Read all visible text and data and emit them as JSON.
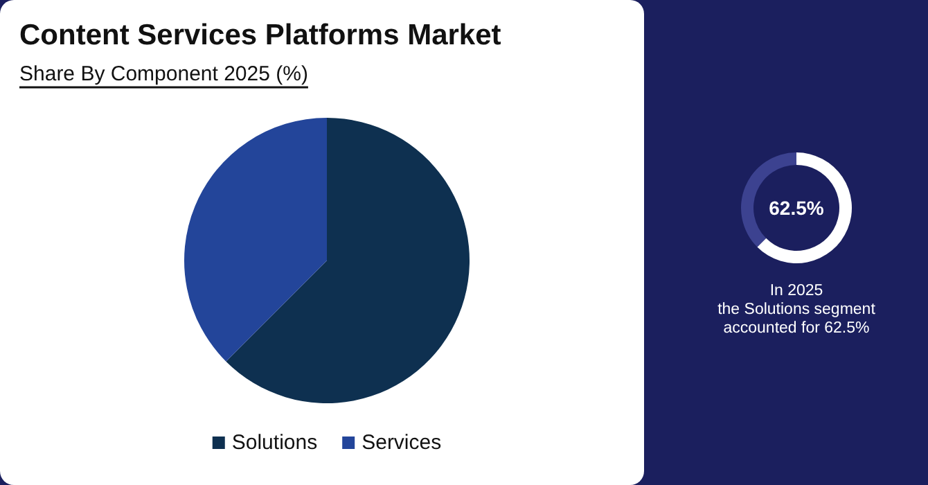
{
  "chart_data": [
    {
      "type": "pie",
      "title": "Content Services Platforms Market",
      "subtitle": "Share By Component 2025 (%)",
      "categories": [
        "Solutions",
        "Services"
      ],
      "values": [
        62.5,
        37.5
      ],
      "colors": [
        "#0e3050",
        "#23459a"
      ],
      "legend": "bottom"
    },
    {
      "type": "donut",
      "categories": [
        null,
        null
      ],
      "values": [
        62.5,
        37.5
      ],
      "colors": [
        "#ffffff",
        "#3c4290"
      ],
      "annotations": [
        "62.5%",
        "In 2025\nthe Solutions segment\naccounted for 62.5%"
      ]
    }
  ]
}
